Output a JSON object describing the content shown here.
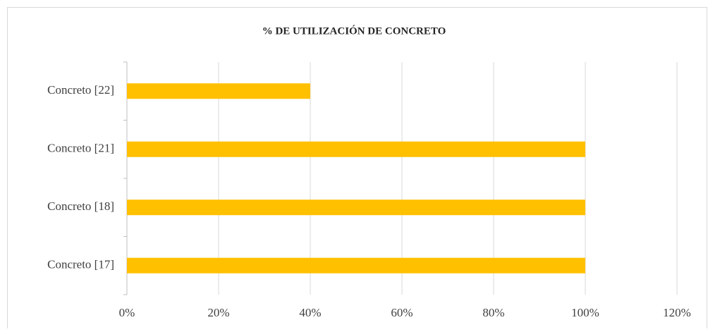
{
  "chart_data": {
    "type": "bar",
    "orientation": "horizontal",
    "title": "% DE UTILIZACIÓN DE CONCRETO",
    "categories": [
      "Concreto [22]",
      "Concreto [21]",
      "Concreto [18]",
      "Concreto [17]"
    ],
    "values": [
      40,
      100,
      100,
      100
    ],
    "color": "#ffc000",
    "xlim": [
      0,
      120
    ],
    "xticks": [
      {
        "value": 0,
        "label": "0%"
      },
      {
        "value": 20,
        "label": "20%"
      },
      {
        "value": 40,
        "label": "40%"
      },
      {
        "value": 60,
        "label": "60%"
      },
      {
        "value": 80,
        "label": "80%"
      },
      {
        "value": 100,
        "label": "100%"
      },
      {
        "value": 120,
        "label": "120%"
      }
    ],
    "grid": true
  }
}
